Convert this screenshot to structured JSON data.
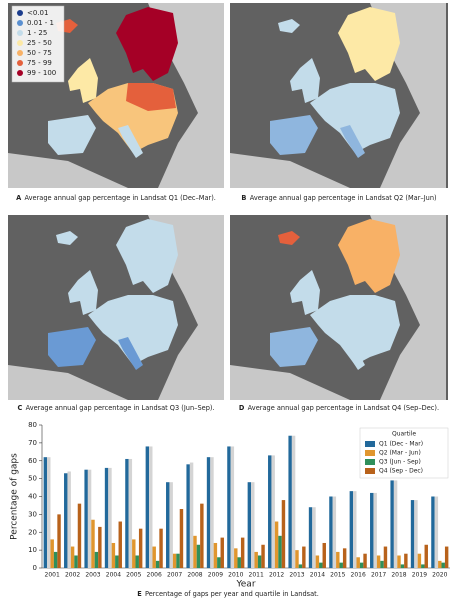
{
  "maps": [
    {
      "letter": "A",
      "caption": "Average annual gap percentage in Landsat Q1 (Dec–Mar)."
    },
    {
      "letter": "B",
      "caption": "Average annual gap percentage in Landsat Q2 (Mar–Jun)"
    },
    {
      "letter": "C",
      "caption": "Average annual gap percentage in Landsat Q3 (Jun–Sep)."
    },
    {
      "letter": "D",
      "caption": "Average annual gap percentage in Landsat Q4 (Sep–Dec)."
    }
  ],
  "map_legend": [
    {
      "label": "<0.01",
      "color": "#1b3c8c"
    },
    {
      "label": "0.01 - 1",
      "color": "#5a8fd0"
    },
    {
      "label": "1 - 25",
      "color": "#c3dcea"
    },
    {
      "label": "25 - 50",
      "color": "#fde9a6"
    },
    {
      "label": "50 - 75",
      "color": "#f8b166"
    },
    {
      "label": "75 - 99",
      "color": "#e4603c"
    },
    {
      "label": "99 - 100",
      "color": "#a50026"
    }
  ],
  "chart_data": {
    "type": "bar",
    "x_label": "Year",
    "y_label": "Percentage of gaps",
    "legend_title": "Quartile",
    "caption": {
      "letter": "E",
      "text": "Percentage of gaps per year and quartile in Landsat."
    },
    "categories": [
      "2001",
      "2002",
      "2003",
      "2004",
      "2005",
      "2006",
      "2007",
      "2008",
      "2009",
      "2010",
      "2011",
      "2012",
      "2013",
      "2014",
      "2015",
      "2016",
      "2017",
      "2018",
      "2019",
      "2020"
    ],
    "series": [
      {
        "name": "Q1 (Dec - Mar)",
        "color": "#22699b",
        "values": [
          62,
          53,
          55,
          56,
          61,
          68,
          48,
          58,
          62,
          68,
          48,
          63,
          74,
          34,
          40,
          43,
          42,
          49,
          38,
          40
        ]
      },
      {
        "color": "#d4d4d4",
        "values": [
          62,
          54,
          55,
          56,
          61,
          68,
          48,
          59,
          62,
          68,
          48,
          63,
          74,
          34,
          40,
          43,
          42,
          49,
          38,
          40
        ]
      },
      {
        "name": "Q2 (Mar - Jun)",
        "color": "#e0962e",
        "values": [
          16,
          12,
          27,
          14,
          16,
          12,
          8,
          18,
          14,
          11,
          9,
          26,
          10,
          7,
          9,
          6,
          7,
          7,
          8,
          4
        ]
      },
      {
        "name": "Q3 (Jun - Sep)",
        "color": "#2f8f5b",
        "values": [
          9,
          7,
          9,
          7,
          7,
          4,
          8,
          13,
          6,
          6,
          7,
          18,
          2,
          3,
          3,
          3,
          4,
          2,
          2,
          3
        ]
      },
      {
        "name": "Q4 (Sep - Dec)",
        "color": "#b8621b",
        "values": [
          30,
          36,
          23,
          26,
          22,
          22,
          33,
          36,
          17,
          17,
          13,
          38,
          12,
          14,
          11,
          8,
          12,
          8,
          13,
          12
        ]
      }
    ],
    "ylim": [
      0,
      80
    ],
    "yticks": [
      0,
      10,
      20,
      30,
      40,
      50,
      60,
      70,
      80
    ]
  }
}
